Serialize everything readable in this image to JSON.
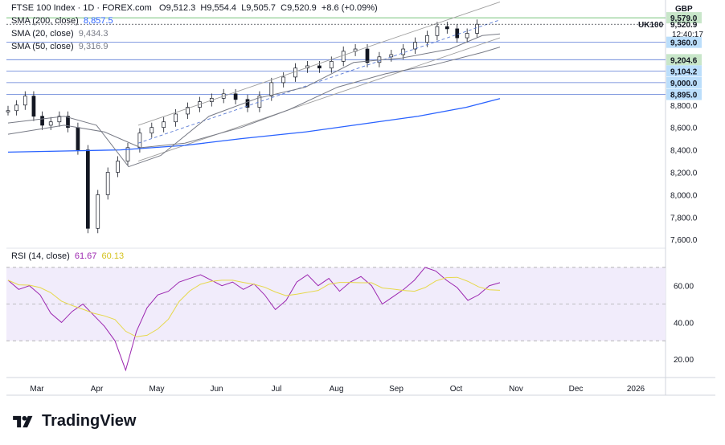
{
  "header": {
    "instrument": "FTSE 100 Index · 1D · FOREX.com",
    "open": "O9,512.3",
    "high": "H9,554.4",
    "low": "L9,505.7",
    "close": "C9,520.9",
    "change": "+8.6 (+0.09%)",
    "currency": "GBP"
  },
  "indicators": [
    {
      "label": "SMA (200, close)",
      "value": "8,857.5",
      "color": "#2962ff"
    },
    {
      "label": "SMA (20, close)",
      "value": "9,434.3",
      "color": "#787b86"
    },
    {
      "label": "SMA (50, close)",
      "value": "9,316.9",
      "color": "#787b86"
    }
  ],
  "rsi_legend": {
    "label": "RSI (14, close)",
    "value1": "61.67",
    "value2": "60.13"
  },
  "price_labels": {
    "ticker": "UK100",
    "last": "9,520.9",
    "countdown": "12:40:17",
    "level_tags": [
      "9,579.0",
      "9,360.0",
      "9,204.6",
      "9,104.2",
      "9,000.0",
      "8,895.0"
    ]
  },
  "branding": {
    "name": "TradingView"
  },
  "chart_data": {
    "type": "line",
    "title": "FTSE 100 Index · 1D · FOREX.com",
    "x_months": [
      "Mar",
      "Apr",
      "May",
      "Jun",
      "Jul",
      "Aug",
      "Sep",
      "Oct",
      "Nov",
      "Dec",
      "2026"
    ],
    "price_axis": {
      "ticks": [
        7600,
        7800,
        8000,
        8200,
        8400,
        8600,
        8800
      ],
      "ylim": [
        7530,
        9680
      ]
    },
    "horizontal_levels": [
      9579.0,
      9360.0,
      9204.6,
      9104.2,
      9000.0,
      8895.0
    ],
    "close_series_approx": [
      {
        "month": "Mar",
        "values": [
          8750,
          8800,
          8880,
          8700,
          8620,
          8650,
          8700
        ]
      },
      {
        "month": "Apr",
        "values": [
          8600,
          8400,
          7700,
          8000,
          8200,
          8300
        ]
      },
      {
        "month": "May",
        "values": [
          8420,
          8550,
          8600,
          8650,
          8720
        ]
      },
      {
        "month": "Jun",
        "values": [
          8780,
          8830,
          8860,
          8900,
          8850
        ]
      },
      {
        "month": "Jul",
        "values": [
          8780,
          8880,
          9000,
          9050,
          9130
        ]
      },
      {
        "month": "Aug",
        "values": [
          9150,
          9130,
          9190,
          9280,
          9300
        ]
      },
      {
        "month": "Sep",
        "values": [
          9180,
          9230,
          9250,
          9300,
          9360
        ]
      },
      {
        "month": "Oct",
        "values": [
          9420,
          9500,
          9480,
          9400,
          9440,
          9520.9
        ]
      }
    ],
    "sma": [
      {
        "name": "SMA (200, close)",
        "last": 8857.5
      },
      {
        "name": "SMA (20, close)",
        "last": 9434.3
      },
      {
        "name": "SMA (50, close)",
        "last": 9316.9
      }
    ],
    "rsi": {
      "ticks": [
        20,
        40,
        60
      ],
      "upper_band": 70,
      "lower_band": 30,
      "ylim": [
        10,
        80
      ],
      "values_approx": [
        63,
        58,
        60,
        55,
        45,
        40,
        46,
        50,
        44,
        38,
        30,
        14,
        35,
        48,
        55,
        57,
        62,
        64,
        66,
        63,
        60,
        62,
        58,
        61,
        55,
        47,
        52,
        62,
        66,
        60,
        64,
        57,
        62,
        65,
        60,
        50,
        54,
        58,
        63,
        70,
        68,
        63,
        59,
        52,
        55,
        60,
        61.67
      ],
      "signal_last": 60.13
    }
  }
}
